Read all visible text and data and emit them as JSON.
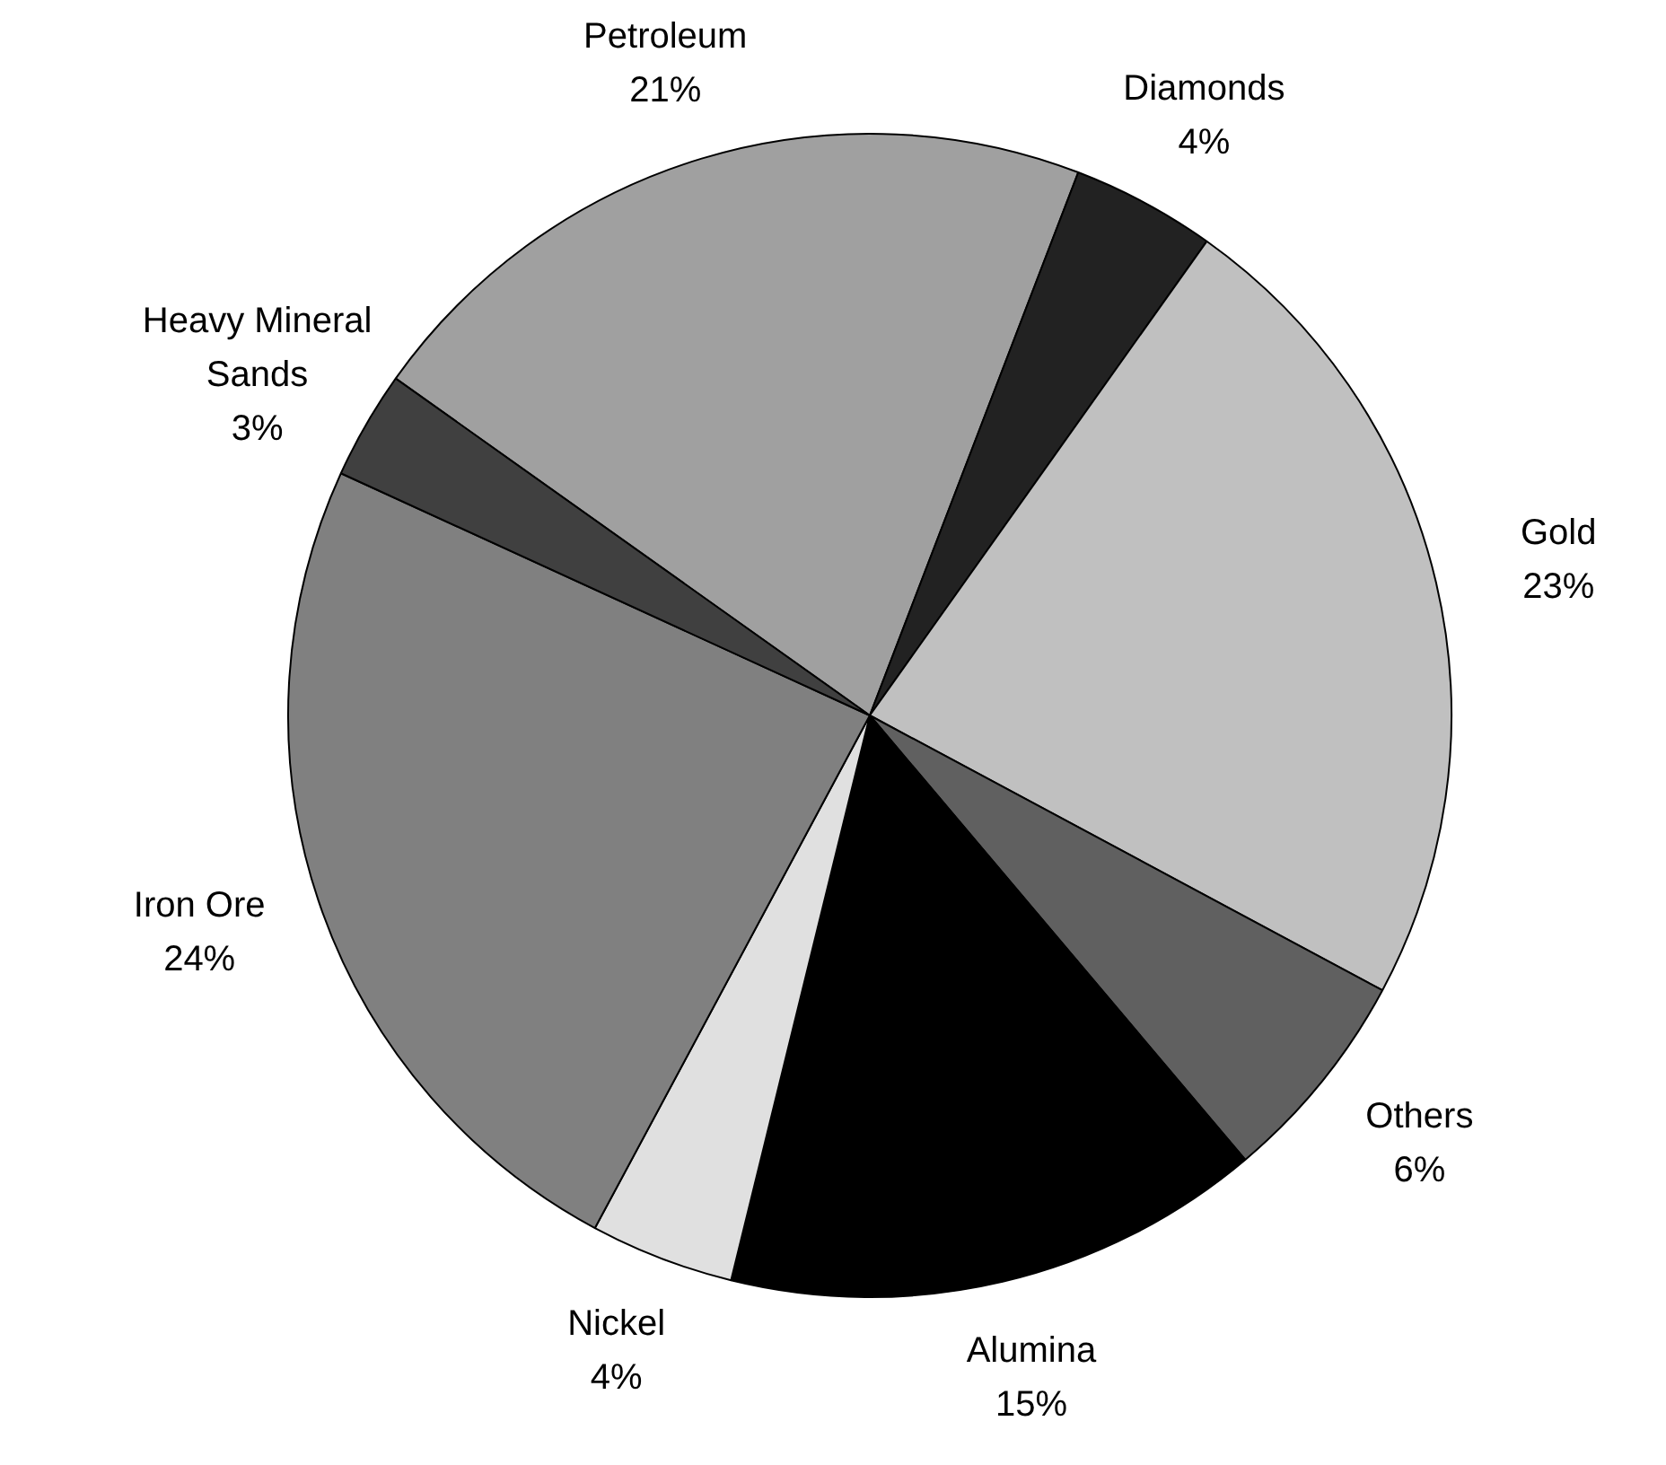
{
  "chart_data": {
    "type": "pie",
    "categories": [
      "Petroleum",
      "Diamonds",
      "Gold",
      "Others",
      "Alumina",
      "Nickel",
      "Iron Ore",
      "Heavy Mineral Sands"
    ],
    "values": [
      21,
      4,
      23,
      6,
      15,
      4,
      24,
      3
    ],
    "value_labels": [
      "21%",
      "4%",
      "23%",
      "6%",
      "15%",
      "4%",
      "24%",
      "3%"
    ],
    "colors": [
      "#a0a0a0",
      "#222222",
      "#c0c0c0",
      "#606060",
      "#000000",
      "#e0e0e0",
      "#808080",
      "#404040"
    ],
    "legend": false
  }
}
